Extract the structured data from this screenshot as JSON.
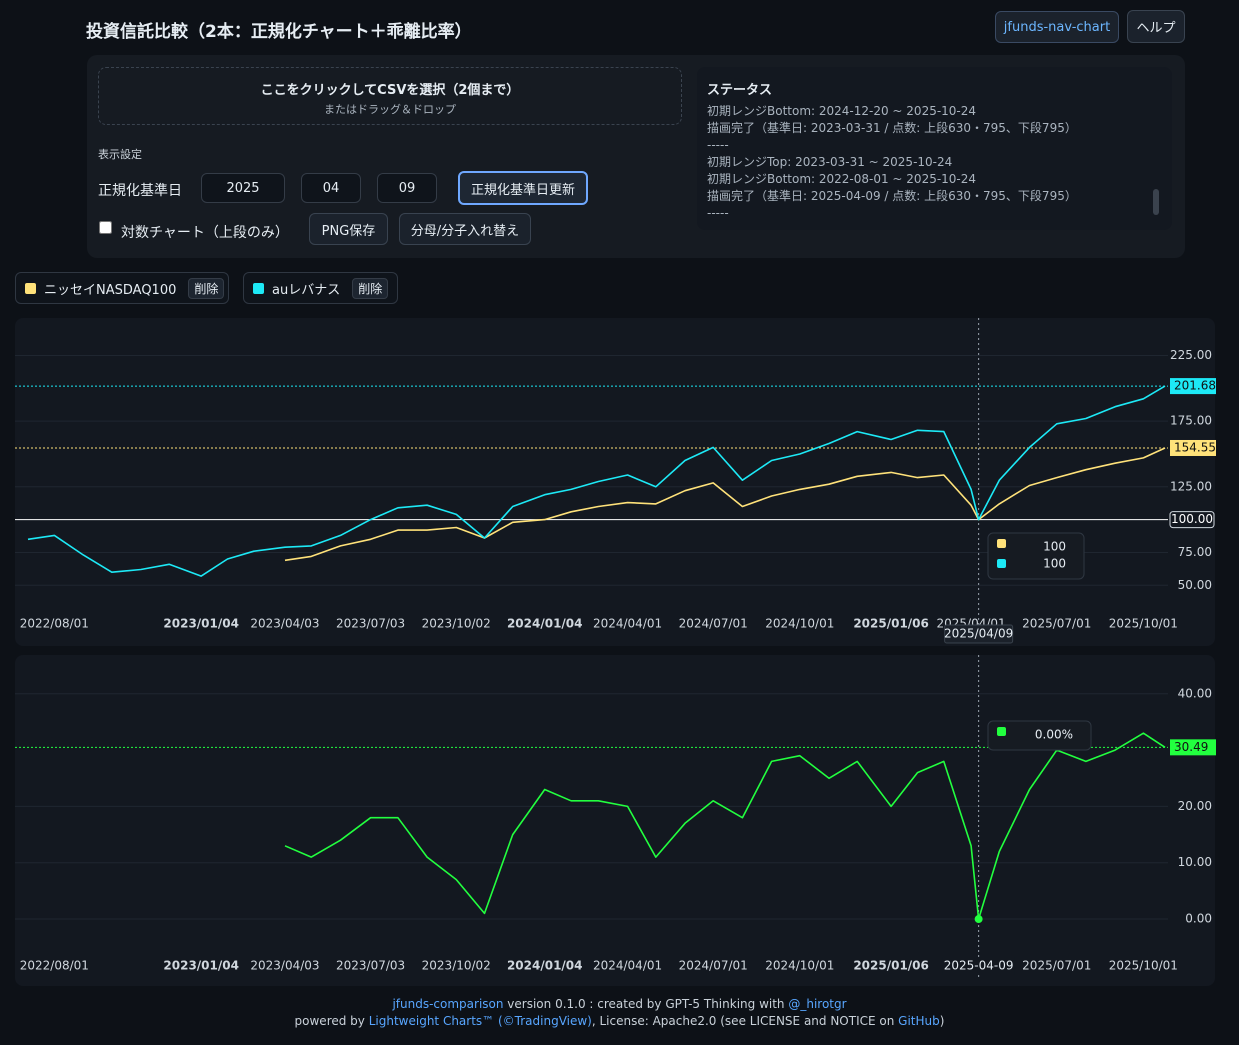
{
  "header": {
    "title": "投資信託比較（2本：正規化チャート＋乖離比率）",
    "buttons": [
      "jfunds-nav-chart",
      "ヘルプ"
    ]
  },
  "upload": {
    "title": "ここをクリックしてCSVを選択（2個まで）",
    "subtitle": "またはドラッグ＆ドロップ"
  },
  "settings": {
    "section_label": "表示設定",
    "base_date_label": "正規化基準日",
    "base_date": {
      "year": "2025",
      "month": "04",
      "day": "09"
    },
    "update_button": "正規化基準日更新",
    "log_checkbox": "対数チャート（上段のみ）",
    "log_checked": false,
    "png_button": "PNG保存",
    "swap_button": "分母/分子入れ替え"
  },
  "status": {
    "title": "ステータス",
    "lines": [
      "初期レンジBottom: 2024-12-20 ~ 2025-10-24",
      "描画完了（基準日: 2023-03-31 / 点数: 上段630・795、下段795）",
      "-----",
      "初期レンジTop: 2023-03-31 ~ 2025-10-24",
      "初期レンジBottom: 2022-08-01 ~ 2025-10-24",
      "描画完了（基準日: 2025-04-09 / 点数: 上段630・795、下段795）",
      "-----"
    ]
  },
  "series_chips": {
    "delete_label": "削除"
  },
  "chart_data": [
    {
      "type": "line",
      "grid": true,
      "log_scale": false,
      "x": [
        "2022/07/04",
        "2022/08/01",
        "2022/09/01",
        "2022/10/01",
        "2022/11/01",
        "2022/12/01",
        "2023/01/04",
        "2023/02/01",
        "2023/03/01",
        "2023/04/03",
        "2023/05/01",
        "2023/06/01",
        "2023/07/03",
        "2023/08/01",
        "2023/09/01",
        "2023/10/02",
        "2023/11/01",
        "2023/12/01",
        "2024/01/04",
        "2024/02/01",
        "2024/03/01",
        "2024/04/01",
        "2024/05/01",
        "2024/06/01",
        "2024/07/01",
        "2024/08/01",
        "2024/09/01",
        "2024/10/01",
        "2024/11/01",
        "2024/12/01",
        "2025/01/06",
        "2025/02/03",
        "2025/03/03",
        "2025/04/01",
        "2025/04/09",
        "2025/05/01",
        "2025/06/02",
        "2025/07/01",
        "2025/08/01",
        "2025/09/01",
        "2025/10/01",
        "2025/10/24"
      ],
      "xlim": [
        "2022/07/04",
        "2025/10/24"
      ],
      "xticks": [
        "2022/08/01",
        "2023/01/04",
        "2023/04/03",
        "2023/07/03",
        "2023/10/02",
        "2024/01/04",
        "2024/04/01",
        "2024/07/01",
        "2024/10/01",
        "2025/01/06",
        "2025/04/01",
        "2025/07/01",
        "2025/10/01"
      ],
      "ylim": [
        35,
        252
      ],
      "yticks": [
        {
          "value": 50,
          "label": "50.00"
        },
        {
          "value": 75,
          "label": "75.00"
        },
        {
          "value": 125,
          "label": "125.00"
        },
        {
          "value": 175,
          "label": "175.00"
        },
        {
          "value": 225,
          "label": "225.00"
        }
      ],
      "baseline": {
        "value": 100,
        "label": "100.00"
      },
      "series": [
        {
          "name": "ニッセイNASDAQ100",
          "color": "#ffe27a",
          "values": [
            null,
            null,
            null,
            null,
            null,
            null,
            null,
            null,
            null,
            69,
            72,
            80,
            85,
            92,
            92,
            94,
            86,
            98,
            100,
            106,
            110,
            113,
            112,
            122,
            128,
            110,
            118,
            123,
            127,
            133,
            136,
            132,
            134,
            111,
            100,
            112,
            126,
            132,
            138,
            143,
            147,
            154.55
          ]
        },
        {
          "name": "auレバナス",
          "color": "#1de9f6",
          "values": [
            85,
            88,
            73,
            60,
            62,
            66,
            57,
            70,
            76,
            79,
            80,
            88,
            100,
            109,
            111,
            104,
            86,
            110,
            119,
            123,
            129,
            134,
            125,
            145,
            155,
            130,
            145,
            150,
            158,
            167,
            161,
            168,
            167,
            123,
            100,
            130,
            155,
            173,
            177,
            186,
            192,
            201.68
          ]
        }
      ],
      "crosshair": {
        "x": "2025/04/09",
        "values": [
          100,
          100
        ]
      }
    },
    {
      "type": "line",
      "grid": true,
      "x": [
        "2022/07/04",
        "2022/08/01",
        "2022/09/01",
        "2022/10/01",
        "2022/11/01",
        "2022/12/01",
        "2023/01/04",
        "2023/02/01",
        "2023/03/01",
        "2023/04/03",
        "2023/05/01",
        "2023/06/01",
        "2023/07/03",
        "2023/08/01",
        "2023/09/01",
        "2023/10/02",
        "2023/11/01",
        "2023/12/01",
        "2024/01/04",
        "2024/02/01",
        "2024/03/01",
        "2024/04/01",
        "2024/05/01",
        "2024/06/01",
        "2024/07/01",
        "2024/08/01",
        "2024/09/01",
        "2024/10/01",
        "2024/11/01",
        "2024/12/01",
        "2025/01/06",
        "2025/02/03",
        "2025/03/03",
        "2025/04/01",
        "2025/04/09",
        "2025/05/01",
        "2025/06/02",
        "2025/07/01",
        "2025/08/01",
        "2025/09/01",
        "2025/10/01",
        "2025/10/24"
      ],
      "xlim": [
        "2022/07/04",
        "2025/10/24"
      ],
      "xticks": [
        "2022/08/01",
        "2023/01/04",
        "2023/04/03",
        "2023/07/03",
        "2023/10/02",
        "2024/01/04",
        "2024/04/01",
        "2024/07/01",
        "2024/10/01",
        "2025/01/06",
        "2025/07/01",
        "2025/10/01"
      ],
      "ylim": [
        -5.5,
        46
      ],
      "yticks": [
        {
          "value": 0,
          "label": "0.00"
        },
        {
          "value": 10,
          "label": "10.00"
        },
        {
          "value": 20,
          "label": "20.00"
        },
        {
          "value": 40,
          "label": "40.00"
        }
      ],
      "series": [
        {
          "color": "#22ff3f",
          "values": [
            null,
            null,
            null,
            null,
            null,
            null,
            null,
            null,
            null,
            13,
            11,
            14,
            18,
            18,
            11,
            7,
            1,
            15,
            23,
            21,
            21,
            20,
            11,
            17,
            21,
            18,
            28,
            29,
            25,
            28,
            20,
            26,
            28,
            13,
            0,
            12,
            23,
            30,
            28,
            30,
            33,
            30.49
          ]
        }
      ],
      "crosshair": {
        "x": "2025-04-09",
        "values": [
          0
        ],
        "value_labels": [
          "0.00%"
        ]
      }
    }
  ],
  "footer": {
    "lines": [
      [
        {
          "text": "jfunds-comparison",
          "link": true
        },
        {
          "text": " version 0.1.0 : created by GPT-5 Thinking with ",
          "link": false
        },
        {
          "text": "@_hirotgr",
          "link": true
        }
      ],
      [
        {
          "text": "powered by ",
          "link": false
        },
        {
          "text": "Lightweight Charts™ (©TradingView)",
          "link": true
        },
        {
          "text": ", License: Apache2.0 (see LICENSE and NOTICE on ",
          "link": false
        },
        {
          "text": "GitHub",
          "link": true
        },
        {
          "text": ")",
          "link": false
        }
      ]
    ]
  }
}
